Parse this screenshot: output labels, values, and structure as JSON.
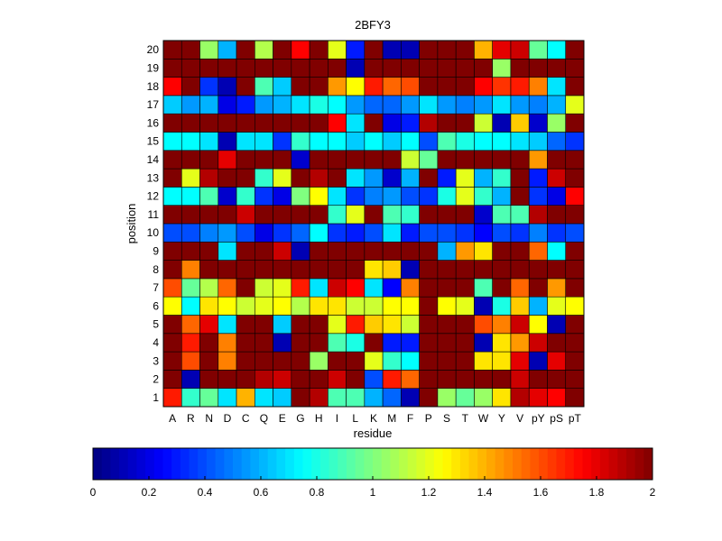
{
  "chart_data": {
    "type": "heatmap",
    "title": "2BFY3",
    "xlabel": "residue",
    "ylabel": "position",
    "x_categories": [
      "A",
      "R",
      "N",
      "D",
      "C",
      "Q",
      "E",
      "G",
      "H",
      "I",
      "L",
      "K",
      "M",
      "F",
      "P",
      "S",
      "T",
      "W",
      "Y",
      "V",
      "pY",
      "pS",
      "pT"
    ],
    "y_categories": [
      "1",
      "2",
      "3",
      "4",
      "5",
      "6",
      "7",
      "8",
      "9",
      "10",
      "11",
      "12",
      "13",
      "14",
      "15",
      "16",
      "17",
      "18",
      "19",
      "20"
    ],
    "value_range": [
      0,
      2
    ],
    "colormap": "jet",
    "colorbar": {
      "ticks": [
        0,
        0.2,
        0.4,
        0.6,
        0.8,
        1,
        1.2,
        1.4,
        1.6,
        1.8,
        2
      ],
      "tick_labels": [
        "0",
        "0.2",
        "0.4",
        "0.6",
        "0.8",
        "1",
        "1.2",
        "1.4",
        "1.6",
        "1.8",
        "2"
      ],
      "placement": "bottom"
    },
    "values": [
      [
        1.7,
        0.85,
        0.95,
        0.7,
        1.4,
        0.7,
        0.65,
        2,
        1.9,
        0.9,
        0.9,
        0.6,
        0.45,
        0.1,
        2,
        1.05,
        0.95,
        1.05,
        1.3,
        1.9,
        1.8,
        1.75,
        2
      ],
      [
        2,
        0.1,
        2,
        2,
        2,
        1.9,
        1.85,
        2,
        2,
        1.85,
        2,
        0.4,
        1.7,
        1.55,
        2,
        2,
        2,
        2,
        2,
        1.85,
        2,
        2,
        2
      ],
      [
        2,
        1.6,
        2,
        1.5,
        2,
        2,
        2,
        2,
        1.05,
        2,
        2,
        1.2,
        0.85,
        0.75,
        2,
        2,
        2,
        1.3,
        1.3,
        1.8,
        0.1,
        1.8,
        2
      ],
      [
        2,
        1.7,
        2,
        1.5,
        2,
        2,
        0.1,
        2,
        2,
        0.9,
        0.8,
        2,
        0.3,
        0.3,
        2,
        2,
        2,
        0.1,
        1.3,
        1.45,
        1.85,
        2,
        2
      ],
      [
        2,
        1.55,
        1.8,
        0.7,
        2,
        2,
        0.65,
        2,
        2,
        1.2,
        1.7,
        1.35,
        1.3,
        1.15,
        2,
        2,
        2,
        1.6,
        1.5,
        1.85,
        1.25,
        0.1,
        2
      ],
      [
        1.25,
        0.75,
        1.3,
        1.25,
        1.15,
        1.2,
        1.25,
        1.1,
        1.3,
        1.3,
        1.15,
        1.15,
        1.25,
        1.25,
        2,
        1.25,
        1.2,
        0.1,
        0.8,
        1.35,
        0.6,
        1.2,
        1.25
      ],
      [
        1.6,
        0.95,
        1.1,
        1.55,
        2,
        1.15,
        1.2,
        1.7,
        0.7,
        1.85,
        1.75,
        0.7,
        0.25,
        1.5,
        2,
        2,
        2,
        0.9,
        2,
        1.55,
        2,
        1.45,
        2
      ],
      [
        2,
        1.5,
        2,
        2,
        2,
        2,
        2,
        2,
        2,
        2,
        2,
        1.3,
        1.35,
        0.1,
        2,
        2,
        2,
        2,
        2,
        2,
        2,
        2,
        2
      ],
      [
        2,
        2,
        2,
        0.7,
        2,
        2,
        1.85,
        0.1,
        2,
        2,
        2,
        2,
        2,
        2,
        2,
        0.6,
        1.45,
        1.3,
        2,
        2,
        1.55,
        0.75,
        2
      ],
      [
        0.4,
        0.4,
        0.5,
        0.55,
        0.4,
        0.2,
        0.35,
        0.45,
        0.75,
        0.35,
        0.3,
        0.4,
        0.7,
        0.3,
        0.4,
        0.4,
        0.35,
        0.25,
        0.4,
        0.35,
        0.5,
        0.35,
        0.4
      ],
      [
        2,
        2,
        2,
        2,
        1.85,
        2,
        2,
        2,
        2,
        0.85,
        1.2,
        2,
        0.9,
        0.85,
        2,
        2,
        2,
        0.15,
        0.9,
        0.9,
        1.9,
        2,
        2
      ],
      [
        0.75,
        0.75,
        0.9,
        0.15,
        0.85,
        0.35,
        0.2,
        1.0,
        1.25,
        0.7,
        0.35,
        0.5,
        0.55,
        0.4,
        0.35,
        0.8,
        1.2,
        0.85,
        0.6,
        2,
        0.35,
        0.2,
        1.75
      ],
      [
        2,
        1.2,
        1.9,
        2,
        2,
        0.85,
        1.2,
        2,
        1.9,
        2,
        0.7,
        0.55,
        0.15,
        0.6,
        2,
        0.3,
        1.2,
        0.6,
        0.85,
        2,
        0.3,
        1.85,
        2
      ],
      [
        2,
        2,
        2,
        1.8,
        2,
        2,
        2,
        0.15,
        2,
        2,
        2,
        2,
        2,
        1.15,
        0.95,
        2,
        2,
        2,
        2,
        2,
        1.45,
        2,
        2
      ],
      [
        0.75,
        0.75,
        0.7,
        0.1,
        0.7,
        0.7,
        0.35,
        0.85,
        0.75,
        0.75,
        0.65,
        0.75,
        0.65,
        0.75,
        0.4,
        0.9,
        0.8,
        0.75,
        0.75,
        0.7,
        0.65,
        0.45,
        0.35
      ],
      [
        2,
        2,
        2,
        2,
        2,
        2,
        2,
        2,
        2,
        1.75,
        0.7,
        2,
        0.2,
        0.3,
        1.9,
        2,
        2,
        1.15,
        0.1,
        1.35,
        0.15,
        1.05,
        2
      ],
      [
        0.65,
        0.55,
        0.6,
        0.2,
        0.3,
        0.55,
        0.6,
        0.7,
        0.8,
        0.75,
        0.55,
        0.45,
        0.45,
        0.55,
        0.7,
        0.55,
        0.5,
        0.55,
        0.7,
        0.55,
        0.5,
        0.6,
        1.2
      ],
      [
        1.75,
        2,
        0.35,
        0.1,
        2,
        0.9,
        0.65,
        2,
        2,
        1.45,
        1.25,
        1.7,
        1.55,
        1.6,
        2,
        2,
        2,
        1.75,
        1.65,
        1.7,
        1.5,
        0.7,
        2
      ],
      [
        2,
        2,
        2,
        2,
        2,
        2,
        2,
        2,
        2,
        2,
        0.1,
        2,
        2,
        2,
        2,
        2,
        2,
        2,
        1.05,
        2,
        2,
        2,
        2
      ],
      [
        2,
        2,
        1.05,
        0.6,
        2,
        1.1,
        2,
        1.75,
        2,
        1.2,
        0.3,
        2,
        0.1,
        0.1,
        2,
        2,
        2,
        1.4,
        1.8,
        1.85,
        0.95,
        0.75,
        2
      ]
    ]
  }
}
